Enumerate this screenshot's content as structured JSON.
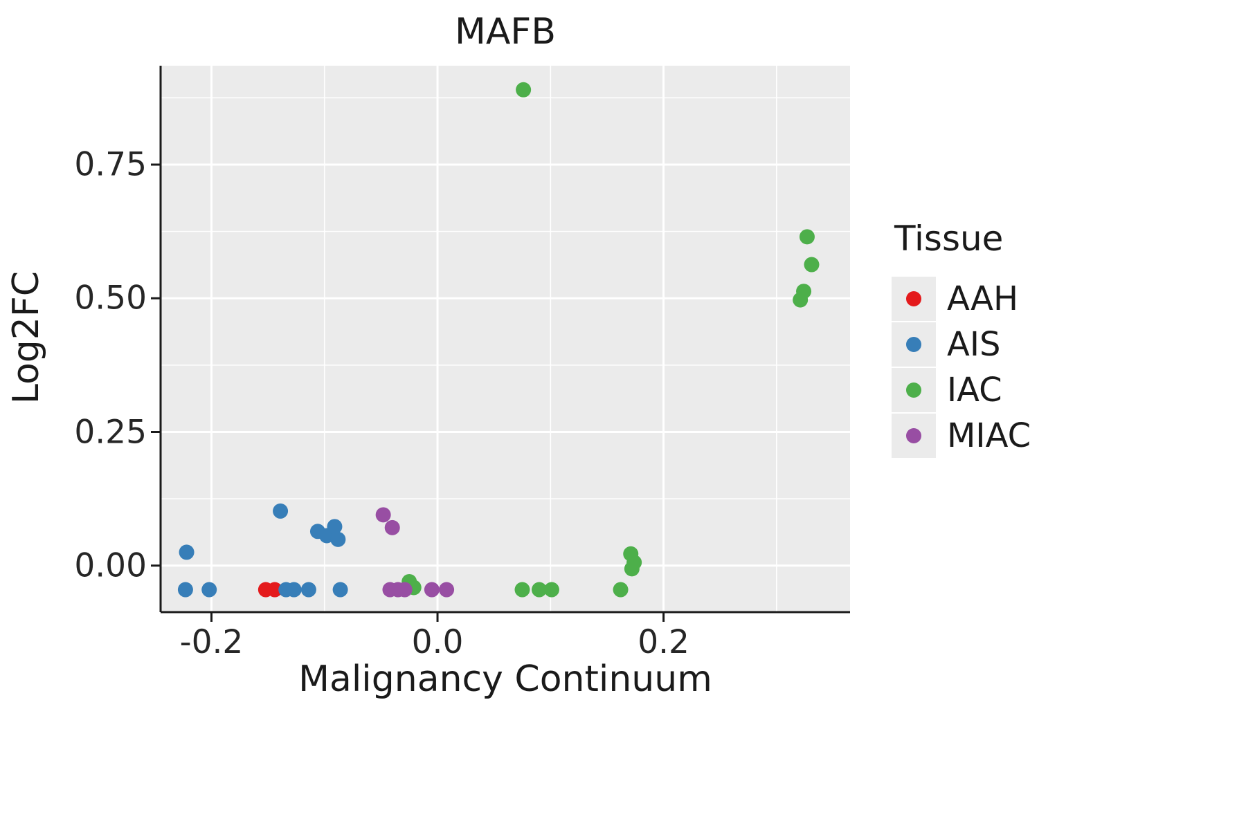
{
  "chart_data": {
    "type": "scatter",
    "title": "MAFB",
    "xlabel": "Malignancy Continuum",
    "ylabel": "Log2FC",
    "xlim": [
      -0.245,
      0.365
    ],
    "ylim": [
      -0.087,
      0.935
    ],
    "grid": true,
    "panel_background": "#EBEBEB",
    "grid_color": "#FFFFFF",
    "axis_color": "#1a1a1a",
    "point_radius": 11,
    "x_ticks": [
      {
        "value": -0.2,
        "label": "-0.2"
      },
      {
        "value": 0.0,
        "label": "0.0"
      },
      {
        "value": 0.2,
        "label": "0.2"
      }
    ],
    "x_minor_ticks": [
      -0.1,
      0.1,
      0.3
    ],
    "y_ticks": [
      {
        "value": 0.0,
        "label": "0.00"
      },
      {
        "value": 0.25,
        "label": "0.25"
      },
      {
        "value": 0.5,
        "label": "0.50"
      },
      {
        "value": 0.75,
        "label": "0.75"
      }
    ],
    "y_minor_ticks": [
      0.125,
      0.375,
      0.625,
      0.875
    ],
    "legend": {
      "title": "Tissue",
      "position": "right"
    },
    "series": [
      {
        "name": "AAH",
        "color": "#E41A1C",
        "points": [
          [
            -0.152,
            -0.045
          ],
          [
            -0.144,
            -0.045
          ]
        ]
      },
      {
        "name": "AIS",
        "color": "#377EB8",
        "points": [
          [
            -0.222,
            0.025
          ],
          [
            -0.223,
            -0.045
          ],
          [
            -0.202,
            -0.045
          ],
          [
            -0.139,
            0.102
          ],
          [
            -0.134,
            -0.045
          ],
          [
            -0.127,
            -0.045
          ],
          [
            -0.114,
            -0.045
          ],
          [
            -0.106,
            0.064
          ],
          [
            -0.098,
            0.056
          ],
          [
            -0.091,
            0.073
          ],
          [
            -0.088,
            0.049
          ],
          [
            -0.086,
            -0.045
          ]
        ]
      },
      {
        "name": "IAC",
        "color": "#4DAF4A",
        "points": [
          [
            0.076,
            0.89
          ],
          [
            0.327,
            0.615
          ],
          [
            0.331,
            0.563
          ],
          [
            0.324,
            0.513
          ],
          [
            0.321,
            0.497
          ],
          [
            -0.025,
            -0.03
          ],
          [
            -0.021,
            -0.041
          ],
          [
            0.075,
            -0.045
          ],
          [
            0.09,
            -0.045
          ],
          [
            0.101,
            -0.045
          ],
          [
            0.162,
            -0.045
          ],
          [
            0.171,
            0.022
          ],
          [
            0.174,
            0.006
          ],
          [
            0.172,
            -0.006
          ]
        ]
      },
      {
        "name": "MIAC",
        "color": "#984EA3",
        "points": [
          [
            -0.048,
            0.095
          ],
          [
            -0.04,
            0.071
          ],
          [
            -0.042,
            -0.045
          ],
          [
            -0.035,
            -0.045
          ],
          [
            -0.029,
            -0.045
          ],
          [
            -0.005,
            -0.045
          ],
          [
            0.008,
            -0.045
          ]
        ]
      }
    ]
  }
}
